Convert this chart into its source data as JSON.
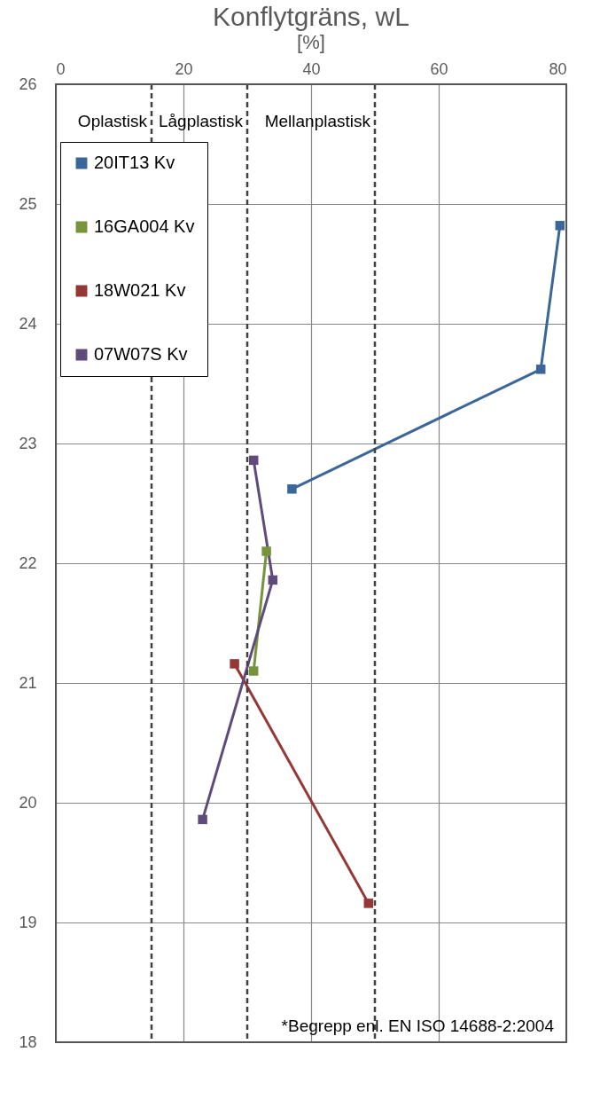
{
  "chart_data": {
    "type": "line",
    "title": "Konflytgräns, wL",
    "subtitle": "[%]",
    "xlim": [
      0,
      80
    ],
    "xticks": [
      0,
      20,
      40,
      60,
      80
    ],
    "ylim": [
      18,
      26
    ],
    "yticks": [
      18,
      19,
      20,
      21,
      22,
      23,
      24,
      25,
      26
    ],
    "grid": true,
    "legend": "top left",
    "marker": "square",
    "line_style": "solid",
    "series": [
      {
        "name": "20IT13 Kv",
        "color": "#3a6699",
        "x": [
          37,
          76,
          79
        ],
        "values": [
          22.62,
          23.62,
          24.82
        ]
      },
      {
        "name": "16GA004 Kv",
        "color": "#77933c",
        "x": [
          33,
          31
        ],
        "values": [
          22.1,
          21.1
        ]
      },
      {
        "name": "18W021 Kv",
        "color": "#953735",
        "x": [
          28,
          49
        ],
        "values": [
          21.16,
          19.16
        ]
      },
      {
        "name": "07W07S Kv",
        "color": "#604a7b",
        "x": [
          31,
          34,
          23
        ],
        "values": [
          22.86,
          21.86,
          19.86
        ]
      }
    ],
    "ref_lines": [
      {
        "axis": "x",
        "value": 15,
        "label": "Oplastisk",
        "line_style": "dashed"
      },
      {
        "axis": "x",
        "value": 30,
        "label": "Lågplastisk",
        "line_style": "dashed"
      },
      {
        "axis": "x",
        "value": 50,
        "label": "Mellanplastisk",
        "line_style": "dashed"
      }
    ],
    "annotations": [
      "*Begrepp enl. EN ISO 14688-2:2004"
    ]
  }
}
